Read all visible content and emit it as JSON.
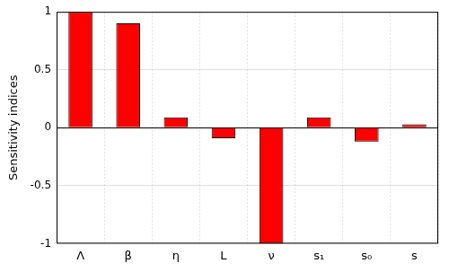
{
  "chart_data": {
    "type": "bar",
    "ylabel": "Sensitivity indices",
    "categories": [
      "Λ",
      "β",
      "η",
      "L",
      "ν",
      "s₁",
      "s₀",
      "s"
    ],
    "values": [
      1.0,
      0.9,
      0.09,
      -0.09,
      -1.0,
      0.09,
      -0.12,
      0.03
    ],
    "color": "#ff0000",
    "ylim": [
      -1,
      1
    ],
    "yticks": [
      -1,
      -0.5,
      0,
      0.5,
      1
    ],
    "grid": true
  }
}
